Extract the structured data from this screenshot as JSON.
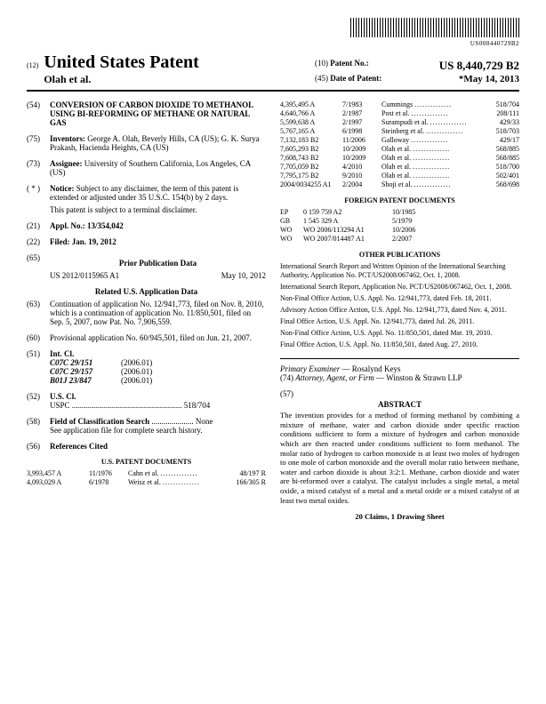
{
  "barcode_text": "US008440729B2",
  "header": {
    "left_num": "(12)",
    "title": "United States Patent",
    "sub": "Olah et al.",
    "patent_no_code": "(10)",
    "patent_no_label": "Patent No.:",
    "patent_no": "US 8,440,729 B2",
    "date_code": "(45)",
    "date_label": "Date of Patent:",
    "date": "*May 14, 2013"
  },
  "fields": {
    "title_code": "(54)",
    "title": "CONVERSION OF CARBON DIOXIDE TO METHANOL USING BI-REFORMING OF METHANE OR NATURAL GAS",
    "inventors_code": "(75)",
    "inventors_label": "Inventors:",
    "inventors": "George A. Olah, Beverly Hills, CA (US); G. K. Surya Prakash, Hacienda Heights, CA (US)",
    "assignee_code": "(73)",
    "assignee_label": "Assignee:",
    "assignee": "University of Southern California, Los Angeles, CA (US)",
    "notice_code": "( * )",
    "notice_label": "Notice:",
    "notice": "Subject to any disclaimer, the term of this patent is extended or adjusted under 35 U.S.C. 154(b) by 2 days.",
    "notice2": "This patent is subject to a terminal disclaimer.",
    "appl_code": "(21)",
    "appl_label": "Appl. No.:",
    "appl": "13/354,042",
    "filed_code": "(22)",
    "filed_label": "Filed:",
    "filed": "Jan. 19, 2012",
    "prior_pub_code": "(65)",
    "prior_pub_title": "Prior Publication Data",
    "prior_pub_no": "US 2012/0115965 A1",
    "prior_pub_date": "May 10, 2012",
    "related_title": "Related U.S. Application Data",
    "cont_code": "(63)",
    "cont": "Continuation of application No. 12/941,773, filed on Nov. 8, 2010, which is a continuation of application No. 11/850,501, filed on Sep. 5, 2007, now Pat. No. 7,906,559.",
    "prov_code": "(60)",
    "prov": "Provisional application No. 60/945,501, filed on Jun. 21, 2007.",
    "intcl_code": "(51)",
    "intcl_label": "Int. Cl.",
    "intcl": [
      {
        "cls": "C07C 29/151",
        "yr": "(2006.01)"
      },
      {
        "cls": "C07C 29/157",
        "yr": "(2006.01)"
      },
      {
        "cls": "B01J 23/847",
        "yr": "(2006.01)"
      }
    ],
    "uscl_code": "(52)",
    "uscl_label": "U.S. Cl.",
    "uscl_line": "USPC ....................................................... 518/704",
    "fcs_code": "(58)",
    "fcs_label": "Field of Classification Search",
    "fcs_value": "None",
    "fcs_note": "See application file for complete search history.",
    "refs_code": "(56)",
    "refs_label": "References Cited"
  },
  "us_patents_title": "U.S. PATENT DOCUMENTS",
  "us_patents": [
    {
      "no": "3,993,457 A",
      "date": "11/1976",
      "name": "Cahn et al.",
      "cls": "48/197 R"
    },
    {
      "no": "4,093,029 A",
      "date": "6/1978",
      "name": "Weisz et al.",
      "cls": "166/305 R"
    },
    {
      "no": "4,395,495 A",
      "date": "7/1983",
      "name": "Cummings",
      "cls": "518/704"
    },
    {
      "no": "4,640,766 A",
      "date": "2/1987",
      "name": "Post et al.",
      "cls": "208/111"
    },
    {
      "no": "5,599,638 A",
      "date": "2/1997",
      "name": "Surampudi et al.",
      "cls": "429/33"
    },
    {
      "no": "5,767,165 A",
      "date": "6/1998",
      "name": "Steinberg et al.",
      "cls": "518/703"
    },
    {
      "no": "7,132,183 B2",
      "date": "11/2006",
      "name": "Galloway",
      "cls": "429/17"
    },
    {
      "no": "7,605,293 B2",
      "date": "10/2009",
      "name": "Olah et al.",
      "cls": "568/885"
    },
    {
      "no": "7,608,743 B2",
      "date": "10/2009",
      "name": "Olah et al.",
      "cls": "568/885"
    },
    {
      "no": "7,705,059 B2",
      "date": "4/2010",
      "name": "Olah et al.",
      "cls": "518/700"
    },
    {
      "no": "7,795,175 B2",
      "date": "9/2010",
      "name": "Olah et al.",
      "cls": "502/401"
    },
    {
      "no": "2004/0034255 A1",
      "date": "2/2004",
      "name": "Shoji et al.",
      "cls": "568/698"
    }
  ],
  "foreign_title": "FOREIGN PATENT DOCUMENTS",
  "foreign": [
    {
      "cc": "EP",
      "no": "0 159 759 A2",
      "date": "10/1985"
    },
    {
      "cc": "GB",
      "no": "1 545 329 A",
      "date": "5/1979"
    },
    {
      "cc": "WO",
      "no": "WO 2006/113294 A1",
      "date": "10/2006"
    },
    {
      "cc": "WO",
      "no": "WO 2007/014487 A1",
      "date": "2/2007"
    }
  ],
  "other_pubs_title": "OTHER PUBLICATIONS",
  "other_pubs": [
    "International Search Report and Written Opinion of the International Searching Authority, Application No. PCT/US2008/067462, Oct. 1, 2008.",
    "International Search Report, Application No. PCT/US2008/067462, Oct. 1, 2008.",
    "Non-Final Office Action, U.S. Appl. No. 12/941,773, dated Feb. 18, 2011.",
    "Advisory Action Office Action, U.S. Appl. No. 12/941,773, dated Nov. 4, 2011.",
    "Final Office Action, U.S. Appl. No. 12/941,773, dated Jul. 26, 2011.",
    "Non-Final Office Action, U.S. Appl. No. 11/850,501, dated Mar. 19, 2010.",
    "Final Office Action, U.S. Appl. No. 11/850,501, dated Aug. 27, 2010."
  ],
  "examiner_label": "Primary Examiner",
  "examiner": "Rosalynd Keys",
  "attorney_code": "(74)",
  "attorney_label": "Attorney, Agent, or Firm",
  "attorney": "Winston & Strawn LLP",
  "abstract_code": "(57)",
  "abstract_label": "ABSTRACT",
  "abstract": "The invention provides for a method of forming methanol by combining a mixture of methane, water and carbon dioxide under specific reaction conditions sufficient to form a mixture of hydrogen and carbon monoxide which are then reacted under conditions sufficient to form methanol. The molar ratio of hydrogen to carbon monoxide is at least two moles of hydrogen to one mole of carbon monoxide and the overall molar ratio between methane, water and carbon dioxide is about 3:2:1. Methane, carbon dioxide and water are bi-reformed over a catalyst. The catalyst includes a single metal, a metal oxide, a mixed catalyst of a metal and a metal oxide or a mixed catalyst of at least two metal oxides.",
  "claims": "20 Claims, 1 Drawing Sheet"
}
